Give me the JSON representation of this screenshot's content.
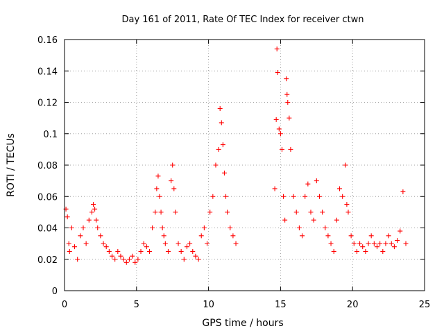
{
  "chart_data": {
    "type": "scatter",
    "title": "Day 161 of 2011, Rate Of TEC Index for receiver ctwn",
    "xlabel": "GPS time / hours",
    "ylabel": "ROTI / TECUs",
    "xlim": [
      0,
      25
    ],
    "ylim": [
      0,
      0.16
    ],
    "xticks": [
      "0",
      "5",
      "10",
      "15",
      "20",
      "25"
    ],
    "yticks": [
      "0",
      "0.02",
      "0.04",
      "0.06",
      "0.08",
      "0.1",
      "0.12",
      "0.14",
      "0.16"
    ],
    "grid": true,
    "marker": "+",
    "color": "#ff0000",
    "series": [
      {
        "x": [
          0.1,
          0.2,
          0.3,
          0.35,
          0.5,
          0.7,
          0.9,
          1.1,
          1.3,
          1.5,
          1.7,
          1.9,
          2.0,
          2.1,
          2.2,
          2.3,
          2.5,
          2.7,
          2.9,
          3.1,
          3.3,
          3.5,
          3.7,
          3.9,
          4.1,
          4.3,
          4.5,
          4.7,
          4.9,
          5.1,
          5.3,
          5.5,
          5.7,
          5.9,
          6.1,
          6.3,
          6.4,
          6.5,
          6.6,
          6.7,
          6.8,
          6.9,
          7.0,
          7.2,
          7.4,
          7.5,
          7.6,
          7.7,
          7.9,
          8.1,
          8.3,
          8.5,
          8.7,
          8.9,
          9.1,
          9.3,
          9.5,
          9.7,
          9.9,
          10.1,
          10.3,
          10.5,
          10.7,
          10.8,
          10.9,
          11.0,
          11.1,
          11.2,
          11.3,
          11.5,
          11.7,
          11.9,
          14.6,
          14.7,
          14.75,
          14.8,
          14.9,
          15.0,
          15.1,
          15.2,
          15.3,
          15.4,
          15.45,
          15.5,
          15.6,
          15.7,
          15.9,
          16.1,
          16.3,
          16.5,
          16.7,
          16.9,
          17.1,
          17.3,
          17.5,
          17.7,
          17.9,
          18.1,
          18.3,
          18.5,
          18.7,
          18.9,
          19.1,
          19.3,
          19.5,
          19.6,
          19.7,
          19.9,
          20.1,
          20.3,
          20.5,
          20.7,
          20.9,
          21.1,
          21.3,
          21.5,
          21.7,
          21.9,
          22.1,
          22.3,
          22.5,
          22.7,
          22.9,
          23.1,
          23.3,
          23.5,
          23.7
        ],
        "y": [
          0.052,
          0.047,
          0.03,
          0.025,
          0.04,
          0.028,
          0.02,
          0.035,
          0.04,
          0.03,
          0.045,
          0.05,
          0.055,
          0.052,
          0.045,
          0.04,
          0.035,
          0.03,
          0.028,
          0.025,
          0.022,
          0.02,
          0.025,
          0.022,
          0.02,
          0.018,
          0.02,
          0.022,
          0.018,
          0.02,
          0.025,
          0.03,
          0.028,
          0.025,
          0.04,
          0.05,
          0.065,
          0.073,
          0.06,
          0.05,
          0.04,
          0.035,
          0.03,
          0.025,
          0.07,
          0.08,
          0.065,
          0.05,
          0.03,
          0.025,
          0.02,
          0.028,
          0.03,
          0.025,
          0.022,
          0.02,
          0.035,
          0.04,
          0.03,
          0.05,
          0.06,
          0.08,
          0.09,
          0.116,
          0.107,
          0.093,
          0.075,
          0.06,
          0.05,
          0.04,
          0.035,
          0.03,
          0.065,
          0.109,
          0.154,
          0.139,
          0.103,
          0.1,
          0.09,
          0.06,
          0.045,
          0.135,
          0.125,
          0.12,
          0.11,
          0.09,
          0.06,
          0.05,
          0.04,
          0.035,
          0.06,
          0.068,
          0.05,
          0.045,
          0.07,
          0.06,
          0.05,
          0.04,
          0.035,
          0.03,
          0.025,
          0.045,
          0.065,
          0.06,
          0.08,
          0.055,
          0.05,
          0.035,
          0.03,
          0.025,
          0.03,
          0.028,
          0.025,
          0.03,
          0.035,
          0.03,
          0.028,
          0.03,
          0.025,
          0.03,
          0.035,
          0.03,
          0.028,
          0.032,
          0.038,
          0.063,
          0.03
        ]
      }
    ]
  }
}
